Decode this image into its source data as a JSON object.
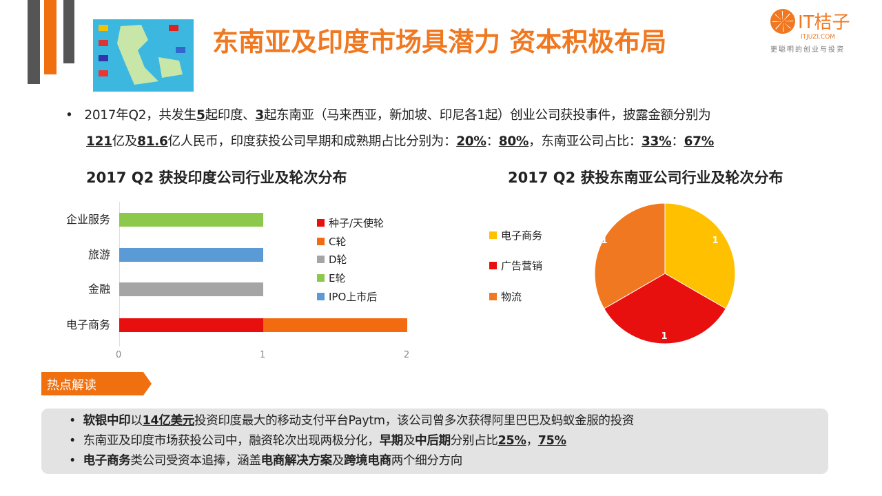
{
  "header": {
    "title": "东南亚及印度市场具潜力 资本积极布局",
    "logo_text": "IT桔子",
    "logo_domain": "ITJUZI.COM",
    "logo_slogan": "更聪明的创业与投资"
  },
  "summary": {
    "line1_pre": "2017年Q2，共发生",
    "n_india": "5",
    "mid1": "起印度、",
    "n_sea": "3",
    "line1_post": "起东南亚（马来西亚，新加坡、印尼各1起）创业公司获投事件，披露金额分别为",
    "amt1": "121",
    "mid2": "亿及",
    "amt2": "81.6",
    "mid3": "亿人民币，印度获投公司早期和成熟期占比分别为：",
    "p1": "20%",
    "sep": "：",
    "p2": "80%",
    "mid4": "，东南亚公司占比：",
    "p3": "33%",
    "p4": "67%"
  },
  "chart_data": [
    {
      "type": "bar",
      "orientation": "horizontal",
      "stacked": true,
      "title": "2017 Q2 获投印度公司行业及轮次分布",
      "categories": [
        "企业服务",
        "旅游",
        "金融",
        "电子商务"
      ],
      "series": [
        {
          "name": "种子/天使轮",
          "color": "#e8100f",
          "values": [
            0,
            0,
            0,
            1
          ]
        },
        {
          "name": "C轮",
          "color": "#f26b10",
          "values": [
            0,
            0,
            0,
            1
          ]
        },
        {
          "name": "D轮",
          "color": "#a5a5a5",
          "values": [
            0,
            0,
            1,
            0
          ]
        },
        {
          "name": "E轮",
          "color": "#8cc84b",
          "values": [
            1,
            0,
            0,
            0
          ]
        },
        {
          "name": "IPO上市后",
          "color": "#5b9bd5",
          "values": [
            0,
            1,
            0,
            0
          ]
        }
      ],
      "xlim": [
        0,
        2
      ],
      "xticks": [
        "0",
        "1",
        "2"
      ],
      "legend": "right"
    },
    {
      "type": "pie",
      "title": "2017 Q2 获投东南亚公司行业及轮次分布",
      "slices": [
        {
          "name": "电子商务",
          "value": 1,
          "label": "1",
          "color": "#ffc000"
        },
        {
          "name": "广告营销",
          "value": 1,
          "label": "1",
          "color": "#e8100f"
        },
        {
          "name": "物流",
          "value": 1,
          "label": "1",
          "color": "#f07820"
        }
      ],
      "legend": "left"
    }
  ],
  "hot": {
    "tab": "热点解读",
    "b1_bold": "软银中印",
    "b1_a": "以",
    "b1_bold2": "14亿美元",
    "b1_b": "投资印度最大的移动支付平台Paytm，该公司曾多次获得阿里巴巴及蚂蚁金服的投资",
    "b2_a": "东南亚及印度市场获投公司中，融资轮次出现两极分化，",
    "b2_bold1": "早期",
    "b2_b": "及",
    "b2_bold2": "中后期",
    "b2_c": "分别占比",
    "b2_p1": "25%",
    "b2_d": "，",
    "b2_p2": "75%",
    "b3_bold1": "电子商务",
    "b3_a": "类公司受资本追捧，涵盖",
    "b3_bold2": "电商解决方案",
    "b3_b": "及",
    "b3_bold3": "跨境电商",
    "b3_c": "两个细分方向"
  }
}
